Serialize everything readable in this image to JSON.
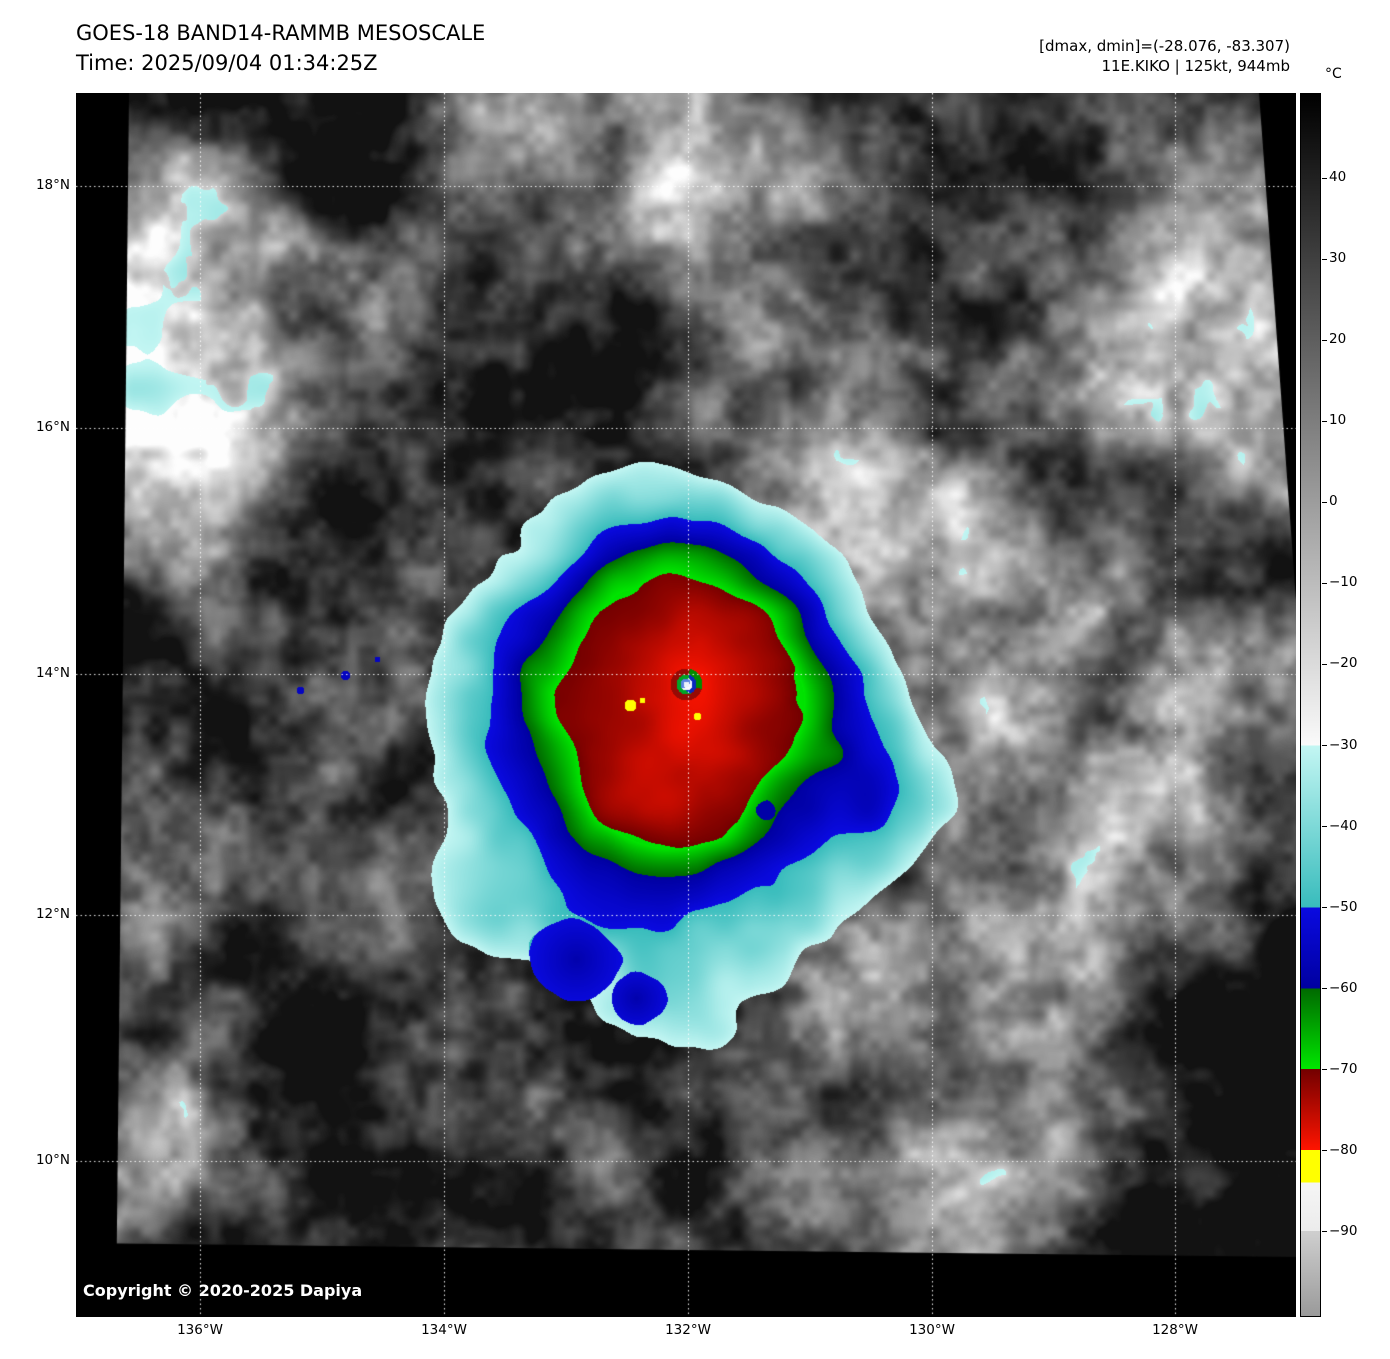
{
  "header": {
    "title": "GOES-18 BAND14-RAMMB MESOSCALE",
    "time_label": "Time: 2025/09/04 01:34:25Z"
  },
  "info": {
    "range_label": "[dmax, dmin]=(-28.076, -83.307)",
    "storm_label": "11E.KIKO | 125kt, 944mb"
  },
  "map": {
    "lat_labels": [
      "18°N",
      "16°N",
      "14°N",
      "12°N",
      "10°N"
    ],
    "lon_labels": [
      "136°W",
      "134°W",
      "132°W",
      "130°W",
      "128°W"
    ],
    "copyright": "Copyright © 2020-2025 Dapiya"
  },
  "colorbar": {
    "unit": "°C",
    "tick_labels": [
      "40",
      "30",
      "20",
      "10",
      "0",
      "−10",
      "−20",
      "−30",
      "−40",
      "−50",
      "−60",
      "−70",
      "−80",
      "−90"
    ],
    "tick_values": [
      40,
      30,
      20,
      10,
      0,
      -10,
      -20,
      -30,
      -40,
      -50,
      -60,
      -70,
      -80,
      -90
    ],
    "domain": [
      50.5,
      -100.5
    ],
    "stops": [
      [
        50.5,
        "#000000"
      ],
      [
        -30,
        "#fafafa"
      ],
      [
        -30,
        "#c3f6f3"
      ],
      [
        -50,
        "#38bcbc"
      ],
      [
        -50,
        "#0a0ae1"
      ],
      [
        -60,
        "#0000a0"
      ],
      [
        -60,
        "#006900"
      ],
      [
        -70,
        "#00e600"
      ],
      [
        -70,
        "#730000"
      ],
      [
        -80,
        "#ff1400"
      ],
      [
        -80,
        "#ffff00"
      ],
      [
        -84,
        "#ffff00"
      ],
      [
        -84,
        "#f5f5f5"
      ],
      [
        -90,
        "#ececec"
      ],
      [
        -90,
        "#cfcfcf"
      ],
      [
        -100.5,
        "#9a9a9a"
      ]
    ]
  }
}
